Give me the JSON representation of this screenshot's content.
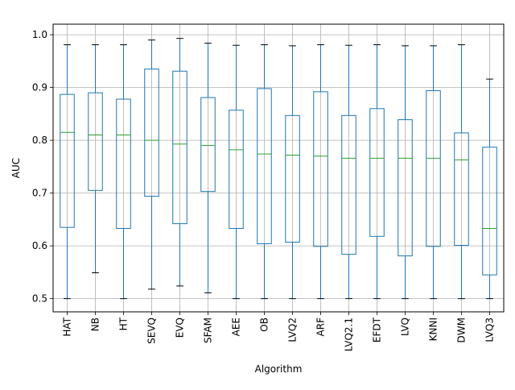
{
  "chart_data": {
    "type": "box",
    "xlabel": "Algorithm",
    "ylabel": "AUC",
    "ylim": [
      0.475,
      1.02
    ],
    "yticks": [
      0.5,
      0.6,
      0.7,
      0.8,
      0.9,
      1.0
    ],
    "ytick_labels": [
      "0.5",
      "0.6",
      "0.7",
      "0.8",
      "0.9",
      "1.0"
    ],
    "grid": true,
    "categories": [
      "HAT",
      "NB",
      "HT",
      "SEVQ",
      "EVQ",
      "SFAM",
      "AEE",
      "OB",
      "LVQ2",
      "ARF",
      "LVQ2.1",
      "EFDT",
      "LVQ",
      "KNNI",
      "DWM",
      "LVQ3"
    ],
    "boxes": [
      {
        "label": "HAT",
        "whislo": 0.5,
        "q1": 0.635,
        "med": 0.815,
        "q3": 0.887,
        "whishi": 0.981
      },
      {
        "label": "NB",
        "whislo": 0.549,
        "q1": 0.705,
        "med": 0.81,
        "q3": 0.89,
        "whishi": 0.981
      },
      {
        "label": "HT",
        "whislo": 0.5,
        "q1": 0.633,
        "med": 0.81,
        "q3": 0.878,
        "whishi": 0.981
      },
      {
        "label": "SEVQ",
        "whislo": 0.518,
        "q1": 0.694,
        "med": 0.8,
        "q3": 0.935,
        "whishi": 0.99
      },
      {
        "label": "EVQ",
        "whislo": 0.524,
        "q1": 0.642,
        "med": 0.793,
        "q3": 0.931,
        "whishi": 0.993
      },
      {
        "label": "SFAM",
        "whislo": 0.511,
        "q1": 0.703,
        "med": 0.79,
        "q3": 0.881,
        "whishi": 0.984
      },
      {
        "label": "AEE",
        "whislo": 0.5,
        "q1": 0.633,
        "med": 0.782,
        "q3": 0.857,
        "whishi": 0.98
      },
      {
        "label": "OB",
        "whislo": 0.5,
        "q1": 0.604,
        "med": 0.774,
        "q3": 0.898,
        "whishi": 0.981
      },
      {
        "label": "LVQ2",
        "whislo": 0.5,
        "q1": 0.607,
        "med": 0.772,
        "q3": 0.847,
        "whishi": 0.979
      },
      {
        "label": "ARF",
        "whislo": 0.5,
        "q1": 0.599,
        "med": 0.77,
        "q3": 0.892,
        "whishi": 0.981
      },
      {
        "label": "LVQ2.1",
        "whislo": 0.5,
        "q1": 0.584,
        "med": 0.766,
        "q3": 0.847,
        "whishi": 0.98
      },
      {
        "label": "EFDT",
        "whislo": 0.5,
        "q1": 0.618,
        "med": 0.766,
        "q3": 0.86,
        "whishi": 0.981
      },
      {
        "label": "LVQ",
        "whislo": 0.5,
        "q1": 0.581,
        "med": 0.766,
        "q3": 0.839,
        "whishi": 0.979
      },
      {
        "label": "KNNI",
        "whislo": 0.5,
        "q1": 0.599,
        "med": 0.766,
        "q3": 0.894,
        "whishi": 0.979
      },
      {
        "label": "DWM",
        "whislo": 0.5,
        "q1": 0.601,
        "med": 0.763,
        "q3": 0.814,
        "whishi": 0.981
      },
      {
        "label": "LVQ3",
        "whislo": 0.5,
        "q1": 0.545,
        "med": 0.633,
        "q3": 0.787,
        "whishi": 0.916
      }
    ],
    "colors": {
      "box": "#1f77b4",
      "median": "#2ca02c",
      "cap": "#000000",
      "grid": "#b0b0b0"
    }
  }
}
